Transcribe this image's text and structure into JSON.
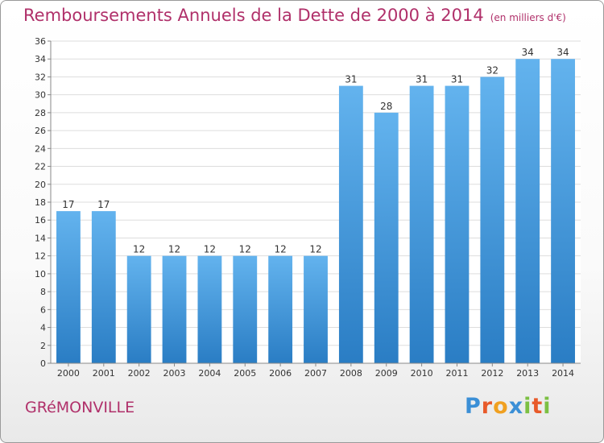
{
  "header": {
    "title": "Remboursements Annuels de la Dette de 2000 à 2014",
    "unit": "(en milliers d'€)"
  },
  "footer": {
    "commune": "GRéMONVILLE",
    "logo_text": "Proxiti"
  },
  "colors": {
    "title": "#b0306a",
    "bar_top": "#63b3ee",
    "bar_bottom": "#2a7dc4",
    "grid": "#dddddd",
    "axis": "#888888"
  },
  "chart_data": {
    "type": "bar",
    "title": "Remboursements Annuels de la Dette de 2000 à 2014",
    "xlabel": "",
    "ylabel": "",
    "categories": [
      "2000",
      "2001",
      "2002",
      "2003",
      "2004",
      "2005",
      "2006",
      "2007",
      "2008",
      "2009",
      "2010",
      "2011",
      "2012",
      "2013",
      "2014"
    ],
    "values": [
      17,
      17,
      12,
      12,
      12,
      12,
      12,
      12,
      31,
      28,
      31,
      31,
      32,
      34,
      34
    ],
    "ylim": [
      0,
      36
    ],
    "yticks": [
      0,
      2,
      4,
      6,
      8,
      10,
      12,
      14,
      16,
      18,
      20,
      22,
      24,
      26,
      28,
      30,
      32,
      34,
      36
    ],
    "grid": true,
    "data_labels": true
  }
}
